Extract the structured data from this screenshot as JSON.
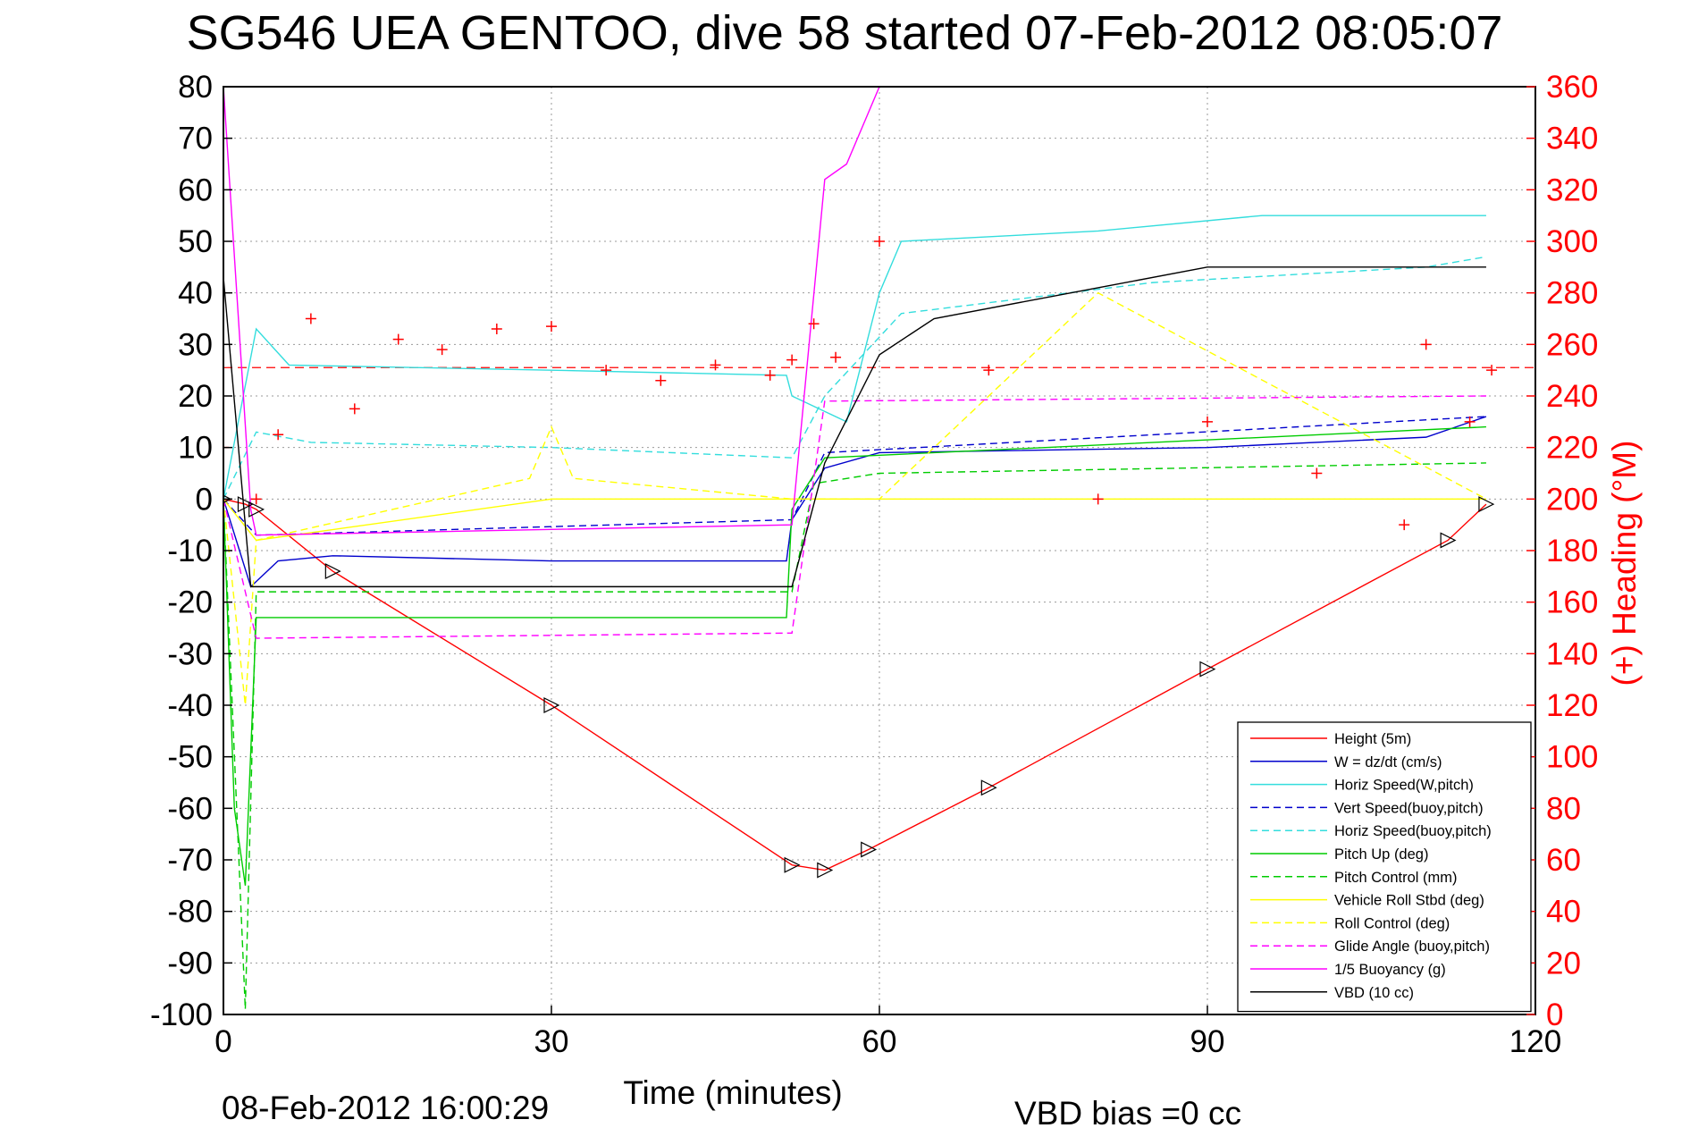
{
  "title": "SG546 UEA GENTOO, dive 58 started 07-Feb-2012 08:05:07",
  "footer_left": "08-Feb-2012 16:00:29",
  "footer_right": "VBD bias =0 cc",
  "colors": {
    "red": "#ff0000",
    "blue": "#0000cc",
    "cyan": "#33dddd",
    "green": "#00cc00",
    "yellow": "#ffff00",
    "magenta": "#ff00ff",
    "black": "#000000",
    "grid": "#9a9a9a"
  },
  "chart_data": {
    "type": "line",
    "xlabel": "Time (minutes)",
    "ylabel_left": "",
    "ylabel_right": "(+) Heading (°M)",
    "xlim": [
      0,
      120
    ],
    "ylim": [
      -100,
      80
    ],
    "ylim_right": [
      0,
      360
    ],
    "xticks": [
      "0",
      "30",
      "60",
      "90",
      "120"
    ],
    "yticks": [
      "80",
      "70",
      "60",
      "50",
      "40",
      "30",
      "20",
      "10",
      "0",
      "-10",
      "-20",
      "-30",
      "-40",
      "-50",
      "-60",
      "-70",
      "-80",
      "-90",
      "-100"
    ],
    "yticks_right": [
      "360",
      "340",
      "320",
      "300",
      "280",
      "260",
      "240",
      "220",
      "200",
      "180",
      "160",
      "140",
      "120",
      "100",
      "80",
      "60",
      "40",
      "20",
      "0"
    ],
    "grid": true,
    "legend_position": "bottom-right",
    "legend": [
      {
        "label": "Height (5m)",
        "color": "#ff0000",
        "dash": false
      },
      {
        "label": "W = dz/dt (cm/s)",
        "color": "#0000cc",
        "dash": false
      },
      {
        "label": "Horiz Speed(W,pitch)",
        "color": "#33dddd",
        "dash": false
      },
      {
        "label": "Vert Speed(buoy,pitch)",
        "color": "#0000cc",
        "dash": true
      },
      {
        "label": "Horiz Speed(buoy,pitch)",
        "color": "#33dddd",
        "dash": true
      },
      {
        "label": "Pitch Up (deg)",
        "color": "#00cc00",
        "dash": false
      },
      {
        "label": "Pitch Control (mm)",
        "color": "#00cc00",
        "dash": true
      },
      {
        "label": "Vehicle Roll Stbd (deg)",
        "color": "#ffff00",
        "dash": false
      },
      {
        "label": "Roll Control (deg)",
        "color": "#ffff00",
        "dash": true
      },
      {
        "label": "Glide Angle (buoy,pitch)",
        "color": "#ff00ff",
        "dash": true
      },
      {
        "label": "1/5 Buoyancy (g)",
        "color": "#ff00ff",
        "dash": false
      },
      {
        "label": "VBD (10 cc)",
        "color": "#000000",
        "dash": false
      }
    ],
    "series": [
      {
        "name": "Height (5m)",
        "color": "#ff0000",
        "x": [
          0,
          2,
          3,
          10,
          30,
          52,
          55,
          59,
          70,
          90,
          112,
          115.5
        ],
        "y": [
          0,
          -1,
          -2,
          -14,
          -40,
          -71,
          -72,
          -68,
          -56,
          -33,
          -8,
          -1
        ]
      },
      {
        "name": "W = dz/dt (cm/s)",
        "color": "#0000cc",
        "x": [
          0,
          2.5,
          5,
          10,
          30,
          51.5,
          52,
          55,
          60,
          90,
          110,
          115.5
        ],
        "y": [
          0,
          -17,
          -12,
          -11,
          -12,
          -12,
          -4,
          6,
          9,
          10,
          12,
          16
        ]
      },
      {
        "name": "Horiz Speed(W,pitch)",
        "color": "#33dddd",
        "x": [
          0,
          3,
          6,
          30,
          51.5,
          52,
          57,
          60,
          62,
          80,
          95,
          110,
          115.5
        ],
        "y": [
          0,
          33,
          26,
          25,
          24,
          20,
          15,
          40,
          50,
          52,
          55,
          55,
          55
        ]
      },
      {
        "name": "Vert Speed(buoy,pitch)",
        "color": "#0000cc",
        "dash": true,
        "x": [
          0,
          3,
          52,
          55,
          115.5
        ],
        "y": [
          0,
          -7,
          -4,
          9,
          16
        ]
      },
      {
        "name": "Horiz Speed(buoy,pitch)",
        "color": "#33dddd",
        "dash": true,
        "x": [
          0,
          3,
          8,
          30,
          52,
          55,
          62,
          85,
          110,
          115.5
        ],
        "y": [
          0,
          13,
          11,
          10,
          8,
          20,
          36,
          42,
          45,
          47
        ]
      },
      {
        "name": "Pitch Up (deg)",
        "color": "#00cc00",
        "x": [
          0,
          1,
          2,
          3,
          30,
          51.5,
          52,
          55,
          115.5
        ],
        "y": [
          0,
          -60,
          -75,
          -23,
          -23,
          -23,
          -2,
          8,
          14
        ]
      },
      {
        "name": "Pitch Control (mm)",
        "color": "#00cc00",
        "dash": true,
        "x": [
          0,
          2,
          3,
          52,
          54,
          60,
          115.5
        ],
        "y": [
          0,
          -99,
          -18,
          -18,
          3,
          5,
          7
        ]
      },
      {
        "name": "Vehicle Roll Stbd (deg)",
        "color": "#ffff00",
        "x": [
          0,
          3,
          30,
          52,
          60,
          115.5
        ],
        "y": [
          0,
          -8,
          0,
          0,
          0,
          0
        ]
      },
      {
        "name": "Roll Control (deg)",
        "color": "#ffff00",
        "dash": true,
        "x": [
          0,
          2,
          3,
          28,
          30,
          32,
          52,
          60,
          80,
          115.5
        ],
        "y": [
          0,
          -40,
          -8,
          4,
          14,
          4,
          0,
          0,
          40,
          0
        ]
      },
      {
        "name": "Glide Angle (buoy,pitch)",
        "color": "#ff00ff",
        "dash": true,
        "x": [
          0,
          3,
          52,
          55,
          115.5
        ],
        "y": [
          0,
          -27,
          -26,
          19,
          20
        ]
      },
      {
        "name": "1/5 Buoyancy (g)",
        "color": "#ff00ff",
        "x": [
          0,
          2.5,
          3,
          52,
          55,
          57,
          60
        ],
        "y": [
          80,
          -2,
          -7,
          -5,
          62,
          65,
          80
        ]
      },
      {
        "name": "VBD (10 cc)",
        "color": "#000000",
        "x": [
          0,
          2.5,
          52,
          55,
          60,
          65,
          80,
          90,
          115.5
        ],
        "y": [
          43,
          -17,
          -17,
          7,
          28,
          35,
          41,
          45,
          45
        ]
      }
    ],
    "heading_series": {
      "name": "(+) Heading (°M)",
      "axis": "right",
      "color": "#ff0000",
      "marker": "+",
      "reference_line": 251,
      "x": [
        0,
        3,
        5,
        8,
        12,
        16,
        20,
        25,
        30,
        35,
        40,
        45,
        50,
        52,
        54,
        56,
        60,
        70,
        80,
        90,
        100,
        108,
        110,
        114,
        116
      ],
      "y": [
        220,
        200,
        225,
        270,
        235,
        262,
        258,
        266,
        267,
        250,
        246,
        252,
        248,
        254,
        268,
        255,
        300,
        250,
        200,
        230,
        210,
        190,
        260,
        230,
        250
      ]
    }
  }
}
